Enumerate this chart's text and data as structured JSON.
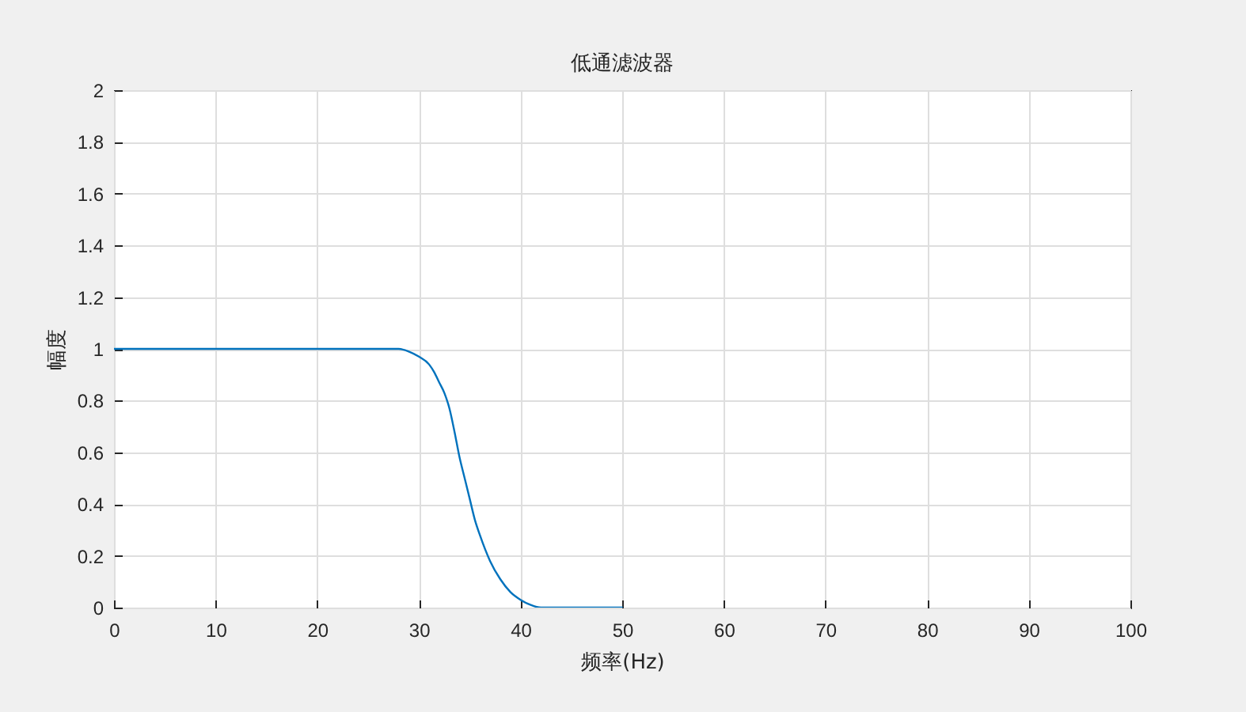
{
  "chart_data": {
    "type": "line",
    "title": "低通滤波器",
    "xlabel": "频率(Hz)",
    "ylabel": "幅度",
    "x": [
      0,
      5,
      10,
      15,
      20,
      25,
      27,
      28,
      29,
      30,
      31,
      31.5,
      32,
      32.5,
      33,
      33.5,
      34,
      34.5,
      35,
      35.5,
      36,
      37,
      38,
      39,
      40,
      41,
      42,
      43,
      44,
      46,
      48,
      50
    ],
    "series": [
      {
        "color": "#0072bd",
        "values": [
          1,
          1,
          1,
          1,
          1,
          1,
          1,
          1,
          0.99,
          0.97,
          0.94,
          0.91,
          0.87,
          0.83,
          0.77,
          0.68,
          0.58,
          0.5,
          0.42,
          0.34,
          0.28,
          0.18,
          0.11,
          0.06,
          0.03,
          0.01,
          0,
          0,
          0,
          0,
          0,
          0
        ]
      }
    ],
    "xlim": [
      0,
      100
    ],
    "xticks": [
      0,
      10,
      20,
      30,
      40,
      50,
      60,
      70,
      80,
      90,
      100
    ],
    "ylim": [
      0,
      2
    ],
    "yticks": [
      0,
      0.2,
      0.4,
      0.6,
      0.8,
      1,
      1.2,
      1.4,
      1.6,
      1.8,
      2
    ],
    "grid": true,
    "line_style": "solid"
  }
}
